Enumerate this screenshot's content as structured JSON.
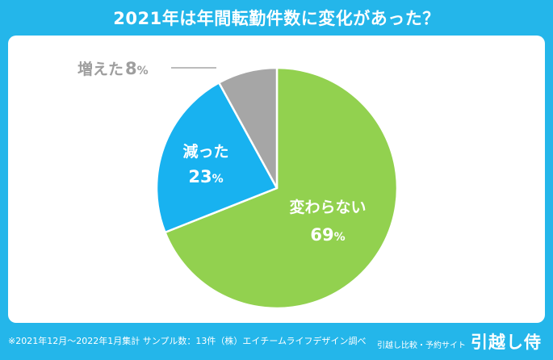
{
  "title": "2021年は年間転勤件数に変化があった？",
  "chart_data": {
    "type": "pie",
    "title": "2021年は年間転勤件数に変化があった？",
    "slices": [
      {
        "label": "変わらない",
        "value": 69,
        "display": "69",
        "unit": "%",
        "color": "#92d14f"
      },
      {
        "label": "減った",
        "value": 23,
        "display": "23",
        "unit": "%",
        "color": "#18b2f0"
      },
      {
        "label": "増えた",
        "value": 8,
        "display": "8",
        "unit": "%",
        "color": "#a6a6a6"
      }
    ],
    "start": "12 o'clock",
    "direction": "clockwise"
  },
  "colors": {
    "background": "#24b6ea",
    "panel": "#ffffff",
    "label_light": "#ffffff",
    "label_muted": "#9e9e9e"
  },
  "footer": {
    "note": "※2021年12月～2022年1月集計 サンプル数：13件（株）エイチームライフデザイン調べ",
    "brand_sub": "引越し比較・予約サイト",
    "brand_name": "引越し侍"
  }
}
